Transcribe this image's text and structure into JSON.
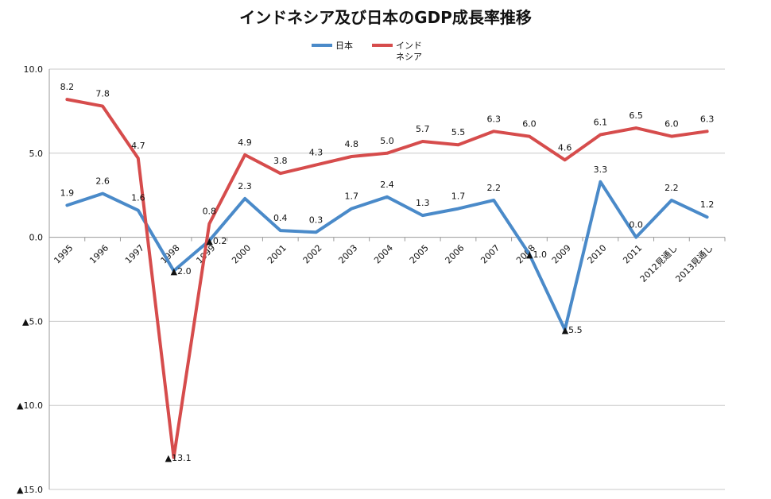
{
  "chart_data": {
    "type": "line",
    "title": "インドネシア及び日本のGDP成長率推移",
    "categories": [
      "1995",
      "1996",
      "1997",
      "1998",
      "1999",
      "2000",
      "2001",
      "2002",
      "2003",
      "2004",
      "2005",
      "2006",
      "2007",
      "2008",
      "2009",
      "2010",
      "2011",
      "2012見通し",
      "2013見通し"
    ],
    "ylim": [
      -15,
      10
    ],
    "yticks": [
      {
        "value": 10,
        "label": "10.0"
      },
      {
        "value": 5,
        "label": "5.0"
      },
      {
        "value": 0,
        "label": "0.0"
      },
      {
        "value": -5,
        "label": "▲5.0"
      },
      {
        "value": -10,
        "label": "▲10.0"
      },
      {
        "value": -15,
        "label": "▲15.0"
      }
    ],
    "grid": true,
    "legend_position": "top-center",
    "series": [
      {
        "name": "日本",
        "color": "#4a8ac9",
        "values": [
          1.9,
          2.6,
          1.6,
          -2.0,
          -0.2,
          2.3,
          0.4,
          0.3,
          1.7,
          2.4,
          1.3,
          1.7,
          2.2,
          -1.0,
          -5.5,
          3.3,
          0.0,
          2.2,
          1.2
        ],
        "labels": [
          "1.9",
          "2.6",
          "1.6",
          "▲2.0",
          "▲0.2",
          "2.3",
          "0.4",
          "0.3",
          "1.7",
          "2.4",
          "1.3",
          "1.7",
          "2.2",
          "▲1.0",
          "▲5.5",
          "3.3",
          "0.0",
          "2.2",
          "1.2"
        ]
      },
      {
        "name": "インド ネシア",
        "color": "#d64c4c",
        "values": [
          8.2,
          7.8,
          4.7,
          -13.1,
          0.8,
          4.9,
          3.8,
          4.3,
          4.8,
          5.0,
          5.7,
          5.5,
          6.3,
          6.0,
          4.6,
          6.1,
          6.5,
          6.0,
          6.3
        ],
        "labels": [
          "8.2",
          "7.8",
          "4.7",
          "▲13.1",
          "0.8",
          "4.9",
          "3.8",
          "4.3",
          "4.8",
          "5.0",
          "5.7",
          "5.5",
          "6.3",
          "6.0",
          "4.6",
          "6.1",
          "6.5",
          "6.0",
          "6.3"
        ]
      }
    ],
    "legend": [
      {
        "line1": "日本",
        "line2": ""
      },
      {
        "line1": "インド",
        "line2": "ネシア"
      }
    ]
  }
}
